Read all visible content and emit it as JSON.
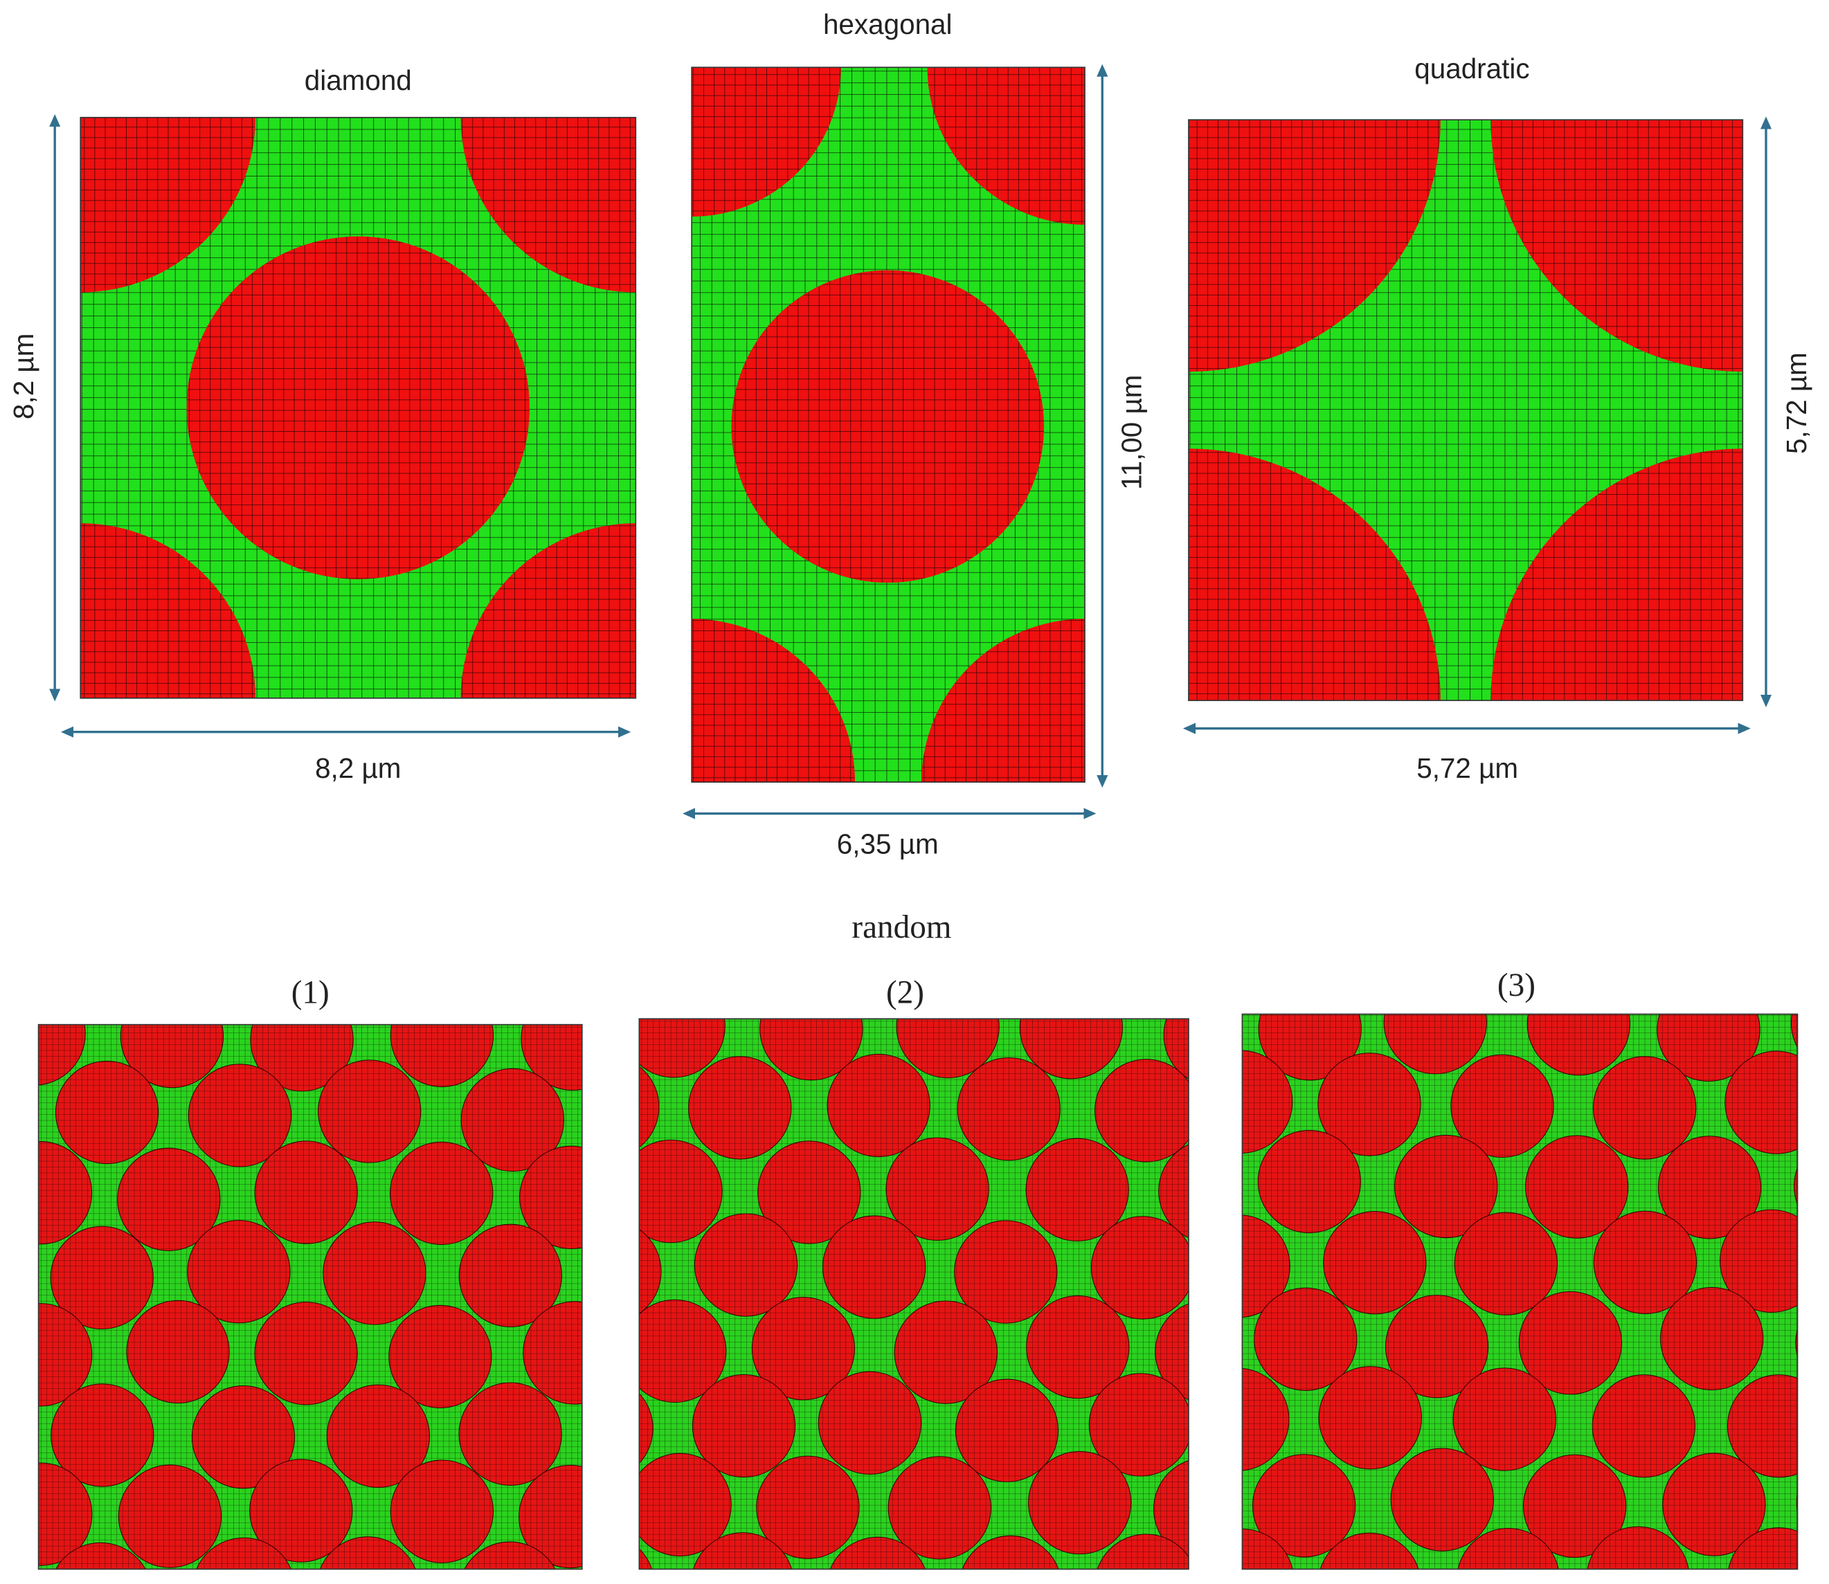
{
  "unit_cells": [
    {
      "title": "diamond",
      "width_label": "8,2 µm",
      "height_label": "8,2 µm"
    },
    {
      "title": "hexagonal",
      "width_label": "6,35 µm",
      "height_label": "11,00 µm"
    },
    {
      "title": "quadratic",
      "width_label": "5,72 µm",
      "height_label": "5,72 µm"
    }
  ],
  "random": {
    "title": "random",
    "panels": [
      "(1)",
      "(2)",
      "(3)"
    ]
  }
}
